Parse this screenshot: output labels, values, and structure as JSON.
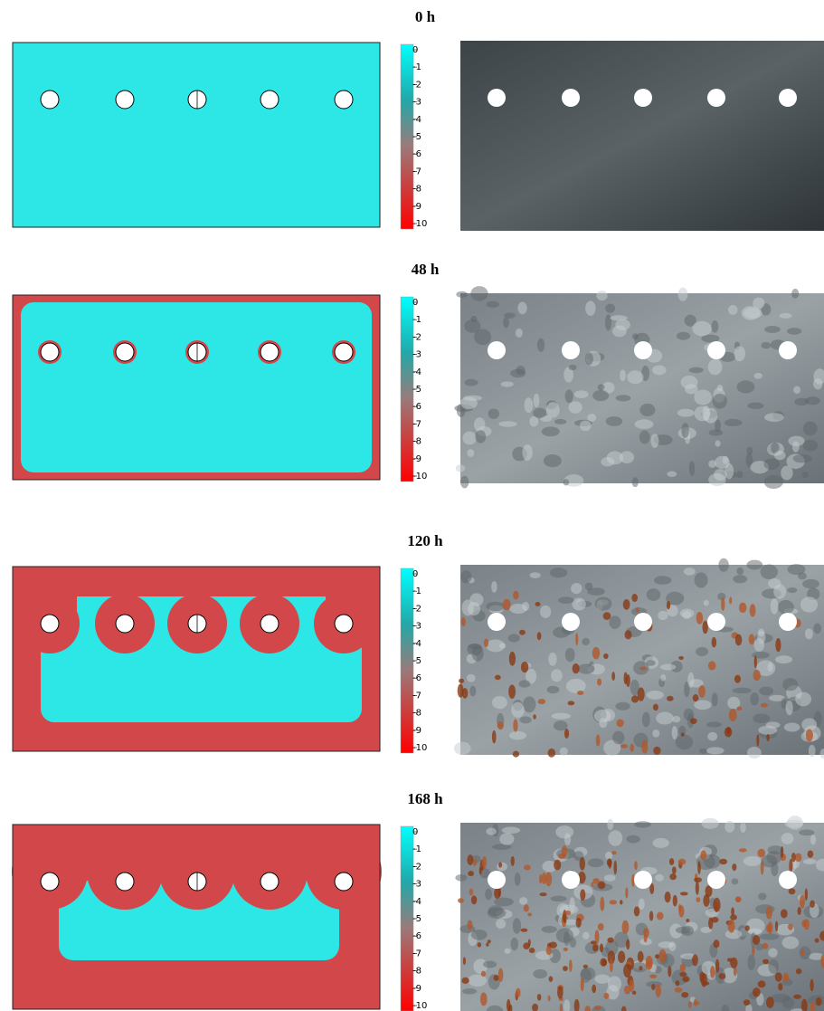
{
  "panels": [
    {
      "title": "0 h",
      "colorbar": {
        "ticks": [
          0,
          -1,
          -2,
          -3,
          -4,
          -5,
          -6,
          -7,
          -8,
          -9,
          -10
        ]
      }
    },
    {
      "title": "48 h",
      "colorbar": {
        "ticks": [
          0,
          -1,
          -2,
          -3,
          -4,
          -5,
          -6,
          -7,
          -8,
          -9,
          -10
        ]
      }
    },
    {
      "title": "120 h",
      "colorbar": {
        "ticks": [
          0,
          -1,
          -2,
          -3,
          -4,
          -5,
          -6,
          -7,
          -8,
          -9,
          -10
        ]
      }
    },
    {
      "title": "168 h",
      "colorbar": {
        "ticks": [
          0,
          -1,
          -2,
          -3,
          -4,
          -5,
          -6,
          -7,
          -8,
          -9,
          -10
        ]
      }
    }
  ]
}
